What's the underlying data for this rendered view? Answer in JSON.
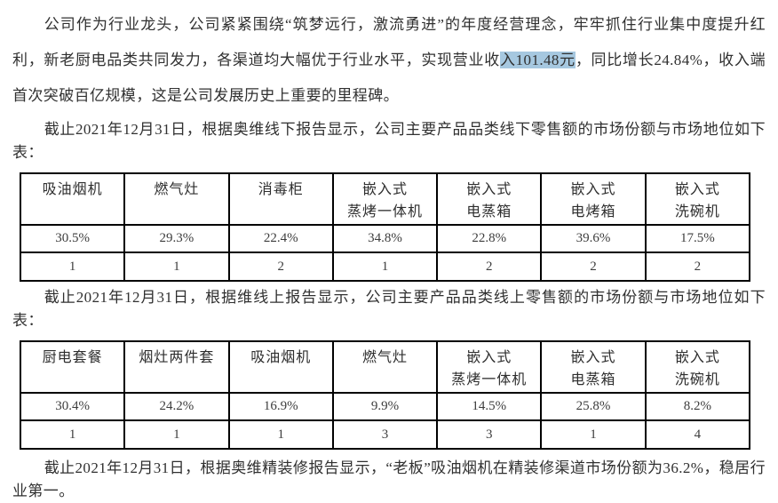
{
  "colors": {
    "highlight": "#a6c8e0",
    "text": "#303030",
    "table_border": "#000000"
  },
  "paragraphs": {
    "intro_before_highlight": "公司作为行业龙头，公司紧紧围绕“筑梦远行，激流勇进”的年度经营理念，牢牢抓住行业集中度提升红利，新老厨电品类共同发力，各渠道均大幅优于行业水平，实现营业收",
    "intro_highlight": "入101.48元",
    "intro_after_highlight": "，同比增长24.84%，收入端首次突破百亿规模，这是公司发展历史上重要的里程碑。",
    "offline_caption": "截止2021年12月31日，根据奥维线下报告显示，公司主要产品品类线下零售额的市场份额与市场地位如下表：",
    "online_caption": "截止2021年12月31日，根据维线上报告显示，公司主要产品品类线上零售额的市场份额与市场地位如下表：",
    "closing": "截止2021年12月31日，根据奥维精装修报告显示，“老板”吸油烟机在精装修渠道市场份额为36.2%，稳居行业第一。"
  },
  "tables": {
    "offline": {
      "headers": [
        "吸油烟机",
        "燃气灶",
        "消毒柜",
        "嵌入式\n蒸烤一体机",
        "嵌入式\n电蒸箱",
        "嵌入式\n电烤箱",
        "嵌入式\n洗碗机"
      ],
      "share": [
        "30.5%",
        "29.3%",
        "22.4%",
        "34.8%",
        "22.8%",
        "39.6%",
        "17.5%"
      ],
      "rank": [
        "1",
        "1",
        "2",
        "1",
        "2",
        "2",
        "2"
      ]
    },
    "online": {
      "headers": [
        "厨电套餐",
        "烟灶两件套",
        "吸油烟机",
        "燃气灶",
        "嵌入式\n蒸烤一体机",
        "嵌入式\n电蒸箱",
        "嵌入式\n洗碗机"
      ],
      "share": [
        "30.4%",
        "24.2%",
        "16.9%",
        "9.9%",
        "14.5%",
        "25.8%",
        "8.2%"
      ],
      "rank": [
        "1",
        "1",
        "1",
        "3",
        "3",
        "1",
        "4"
      ]
    }
  }
}
